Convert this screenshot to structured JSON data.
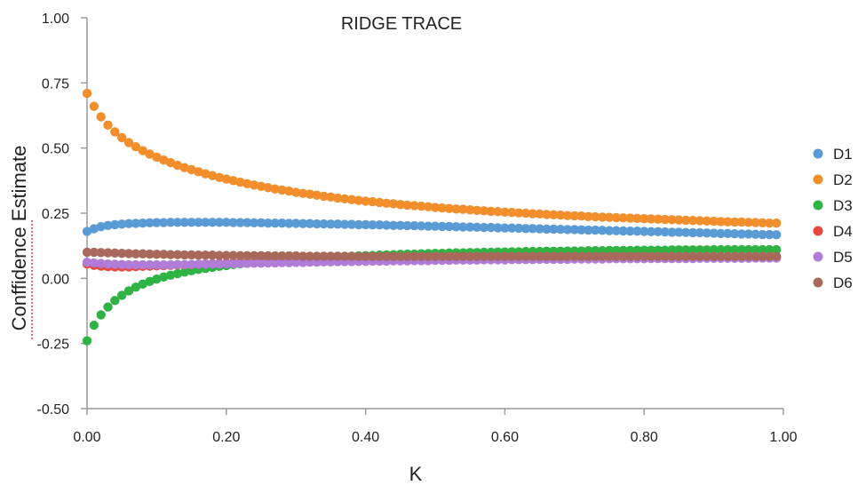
{
  "chart_data": {
    "type": "scatter",
    "title": "RIDGE TRACE",
    "xlabel": "K",
    "ylabel": "Conffidence Estimate",
    "xlim": [
      0,
      1
    ],
    "ylim": [
      -0.5,
      1
    ],
    "xticks": [
      "0.00",
      "0.20",
      "0.40",
      "0.60",
      "0.80",
      "1.00"
    ],
    "yticks": [
      "1.00",
      "0.75",
      "0.50",
      "0.25",
      "0.00",
      "-0.25",
      "-0.50"
    ],
    "grid": false,
    "legend_position": "right",
    "x": [
      0.0,
      0.01,
      0.02,
      0.03,
      0.04,
      0.05,
      0.06,
      0.07,
      0.08,
      0.09,
      0.1,
      0.11,
      0.12,
      0.13,
      0.14,
      0.15,
      0.16,
      0.17,
      0.18,
      0.19,
      0.2,
      0.21,
      0.22,
      0.23,
      0.24,
      0.25,
      0.26,
      0.27,
      0.28,
      0.29,
      0.3,
      0.31,
      0.32,
      0.33,
      0.34,
      0.35,
      0.36,
      0.37,
      0.38,
      0.39,
      0.4,
      0.41,
      0.42,
      0.43,
      0.44,
      0.45,
      0.46,
      0.47,
      0.48,
      0.49,
      0.5,
      0.51,
      0.52,
      0.53,
      0.54,
      0.55,
      0.56,
      0.57,
      0.58,
      0.59,
      0.6,
      0.61,
      0.62,
      0.63,
      0.64,
      0.65,
      0.66,
      0.67,
      0.68,
      0.69,
      0.7,
      0.71,
      0.72,
      0.73,
      0.74,
      0.75,
      0.76,
      0.77,
      0.78,
      0.79,
      0.8,
      0.81,
      0.82,
      0.83,
      0.84,
      0.85,
      0.86,
      0.87,
      0.88,
      0.89,
      0.9,
      0.91,
      0.92,
      0.93,
      0.94,
      0.95,
      0.96,
      0.97,
      0.98,
      0.99
    ],
    "series": [
      {
        "name": "D1",
        "color": "#5b9bd5",
        "values": [
          0.18,
          0.19,
          0.198,
          0.203,
          0.206,
          0.208,
          0.21,
          0.211,
          0.212,
          0.213,
          0.214,
          0.214,
          0.215,
          0.215,
          0.215,
          0.215,
          0.215,
          0.215,
          0.215,
          0.215,
          0.215,
          0.214,
          0.214,
          0.214,
          0.213,
          0.213,
          0.212,
          0.212,
          0.212,
          0.211,
          0.211,
          0.21,
          0.21,
          0.209,
          0.209,
          0.208,
          0.208,
          0.207,
          0.207,
          0.206,
          0.206,
          0.205,
          0.205,
          0.204,
          0.203,
          0.203,
          0.202,
          0.202,
          0.201,
          0.2,
          0.2,
          0.199,
          0.199,
          0.198,
          0.197,
          0.197,
          0.196,
          0.195,
          0.195,
          0.194,
          0.193,
          0.193,
          0.192,
          0.191,
          0.191,
          0.19,
          0.189,
          0.189,
          0.188,
          0.187,
          0.187,
          0.186,
          0.185,
          0.185,
          0.184,
          0.183,
          0.183,
          0.182,
          0.181,
          0.181,
          0.18,
          0.179,
          0.179,
          0.178,
          0.177,
          0.177,
          0.176,
          0.175,
          0.175,
          0.174,
          0.173,
          0.172,
          0.172,
          0.171,
          0.17,
          0.17,
          0.169,
          0.168,
          0.168,
          0.167
        ]
      },
      {
        "name": "D2",
        "color": "#f28e2b",
        "values": [
          0.71,
          0.66,
          0.62,
          0.588,
          0.562,
          0.54,
          0.521,
          0.505,
          0.49,
          0.477,
          0.465,
          0.454,
          0.444,
          0.434,
          0.425,
          0.417,
          0.409,
          0.401,
          0.394,
          0.387,
          0.381,
          0.375,
          0.369,
          0.363,
          0.358,
          0.353,
          0.348,
          0.343,
          0.339,
          0.335,
          0.33,
          0.326,
          0.323,
          0.319,
          0.315,
          0.312,
          0.308,
          0.305,
          0.302,
          0.299,
          0.296,
          0.294,
          0.291,
          0.288,
          0.286,
          0.283,
          0.281,
          0.279,
          0.277,
          0.275,
          0.272,
          0.27,
          0.268,
          0.266,
          0.265,
          0.263,
          0.261,
          0.259,
          0.257,
          0.256,
          0.254,
          0.253,
          0.251,
          0.25,
          0.248,
          0.247,
          0.245,
          0.244,
          0.243,
          0.241,
          0.24,
          0.239,
          0.237,
          0.236,
          0.235,
          0.234,
          0.233,
          0.232,
          0.231,
          0.23,
          0.229,
          0.228,
          0.227,
          0.226,
          0.225,
          0.224,
          0.223,
          0.222,
          0.221,
          0.22,
          0.219,
          0.218,
          0.217,
          0.216,
          0.216,
          0.215,
          0.214,
          0.213,
          0.212,
          0.212
        ]
      },
      {
        "name": "D3",
        "color": "#2fb344",
        "values": [
          -0.24,
          -0.18,
          -0.14,
          -0.11,
          -0.085,
          -0.065,
          -0.048,
          -0.034,
          -0.022,
          -0.012,
          -0.003,
          0.005,
          0.012,
          0.018,
          0.024,
          0.029,
          0.034,
          0.038,
          0.042,
          0.046,
          0.049,
          0.053,
          0.056,
          0.058,
          0.061,
          0.063,
          0.066,
          0.068,
          0.07,
          0.072,
          0.074,
          0.075,
          0.077,
          0.078,
          0.08,
          0.081,
          0.083,
          0.084,
          0.085,
          0.086,
          0.087,
          0.088,
          0.089,
          0.09,
          0.091,
          0.092,
          0.093,
          0.093,
          0.094,
          0.095,
          0.096,
          0.096,
          0.097,
          0.098,
          0.098,
          0.099,
          0.099,
          0.1,
          0.1,
          0.101,
          0.101,
          0.102,
          0.102,
          0.103,
          0.103,
          0.103,
          0.104,
          0.104,
          0.104,
          0.105,
          0.105,
          0.105,
          0.106,
          0.106,
          0.106,
          0.107,
          0.107,
          0.107,
          0.107,
          0.108,
          0.108,
          0.108,
          0.108,
          0.108,
          0.109,
          0.109,
          0.109,
          0.109,
          0.109,
          0.109,
          0.11,
          0.11,
          0.11,
          0.11,
          0.11,
          0.11,
          0.11,
          0.11,
          0.11,
          0.11
        ]
      },
      {
        "name": "D4",
        "color": "#e8473e",
        "values": [
          0.055,
          0.05,
          0.047,
          0.045,
          0.044,
          0.044,
          0.044,
          0.045,
          0.046,
          0.047,
          0.048,
          0.049,
          0.05,
          0.051,
          0.052,
          0.053,
          0.054,
          0.055,
          0.056,
          0.057,
          0.058,
          0.059,
          0.06,
          0.061,
          0.061,
          0.062,
          0.063,
          0.064,
          0.064,
          0.065,
          0.066,
          0.066,
          0.067,
          0.067,
          0.068,
          0.068,
          0.069,
          0.069,
          0.07,
          0.07,
          0.071,
          0.071,
          0.071,
          0.072,
          0.072,
          0.072,
          0.073,
          0.073,
          0.073,
          0.074,
          0.074,
          0.074,
          0.075,
          0.075,
          0.075,
          0.075,
          0.076,
          0.076,
          0.076,
          0.076,
          0.077,
          0.077,
          0.077,
          0.077,
          0.077,
          0.078,
          0.078,
          0.078,
          0.078,
          0.078,
          0.079,
          0.079,
          0.079,
          0.079,
          0.079,
          0.079,
          0.08,
          0.08,
          0.08,
          0.08,
          0.08,
          0.08,
          0.08,
          0.081,
          0.081,
          0.081,
          0.081,
          0.081,
          0.081,
          0.081,
          0.081,
          0.082,
          0.082,
          0.082,
          0.082,
          0.082,
          0.082,
          0.082,
          0.082,
          0.082
        ]
      },
      {
        "name": "D5",
        "color": "#b07cd8",
        "values": [
          0.062,
          0.059,
          0.057,
          0.055,
          0.054,
          0.053,
          0.052,
          0.052,
          0.052,
          0.052,
          0.052,
          0.052,
          0.052,
          0.053,
          0.053,
          0.053,
          0.054,
          0.054,
          0.055,
          0.055,
          0.056,
          0.056,
          0.057,
          0.057,
          0.058,
          0.058,
          0.059,
          0.059,
          0.06,
          0.06,
          0.061,
          0.061,
          0.062,
          0.062,
          0.063,
          0.063,
          0.064,
          0.064,
          0.064,
          0.065,
          0.065,
          0.066,
          0.066,
          0.066,
          0.067,
          0.067,
          0.067,
          0.068,
          0.068,
          0.068,
          0.069,
          0.069,
          0.069,
          0.07,
          0.07,
          0.07,
          0.07,
          0.071,
          0.071,
          0.071,
          0.071,
          0.072,
          0.072,
          0.072,
          0.072,
          0.073,
          0.073,
          0.073,
          0.073,
          0.073,
          0.074,
          0.074,
          0.074,
          0.074,
          0.074,
          0.075,
          0.075,
          0.075,
          0.075,
          0.075,
          0.075,
          0.076,
          0.076,
          0.076,
          0.076,
          0.076,
          0.076,
          0.076,
          0.077,
          0.077,
          0.077,
          0.077,
          0.077,
          0.077,
          0.077,
          0.077,
          0.078,
          0.078,
          0.078,
          0.078
        ]
      },
      {
        "name": "D6",
        "color": "#a8695b",
        "values": [
          0.1,
          0.1,
          0.099,
          0.098,
          0.097,
          0.096,
          0.095,
          0.094,
          0.094,
          0.093,
          0.092,
          0.092,
          0.091,
          0.091,
          0.09,
          0.09,
          0.089,
          0.089,
          0.089,
          0.088,
          0.088,
          0.088,
          0.087,
          0.087,
          0.087,
          0.087,
          0.086,
          0.086,
          0.086,
          0.086,
          0.086,
          0.085,
          0.085,
          0.085,
          0.085,
          0.085,
          0.085,
          0.085,
          0.085,
          0.084,
          0.084,
          0.084,
          0.084,
          0.084,
          0.084,
          0.084,
          0.084,
          0.084,
          0.084,
          0.084,
          0.084,
          0.084,
          0.084,
          0.084,
          0.084,
          0.084,
          0.084,
          0.084,
          0.084,
          0.084,
          0.084,
          0.084,
          0.084,
          0.084,
          0.084,
          0.084,
          0.084,
          0.084,
          0.084,
          0.084,
          0.084,
          0.084,
          0.084,
          0.084,
          0.084,
          0.084,
          0.084,
          0.084,
          0.084,
          0.084,
          0.084,
          0.084,
          0.084,
          0.084,
          0.084,
          0.084,
          0.084,
          0.084,
          0.084,
          0.084,
          0.084,
          0.084,
          0.084,
          0.084,
          0.084,
          0.084,
          0.084,
          0.084,
          0.084,
          0.084
        ]
      }
    ]
  }
}
